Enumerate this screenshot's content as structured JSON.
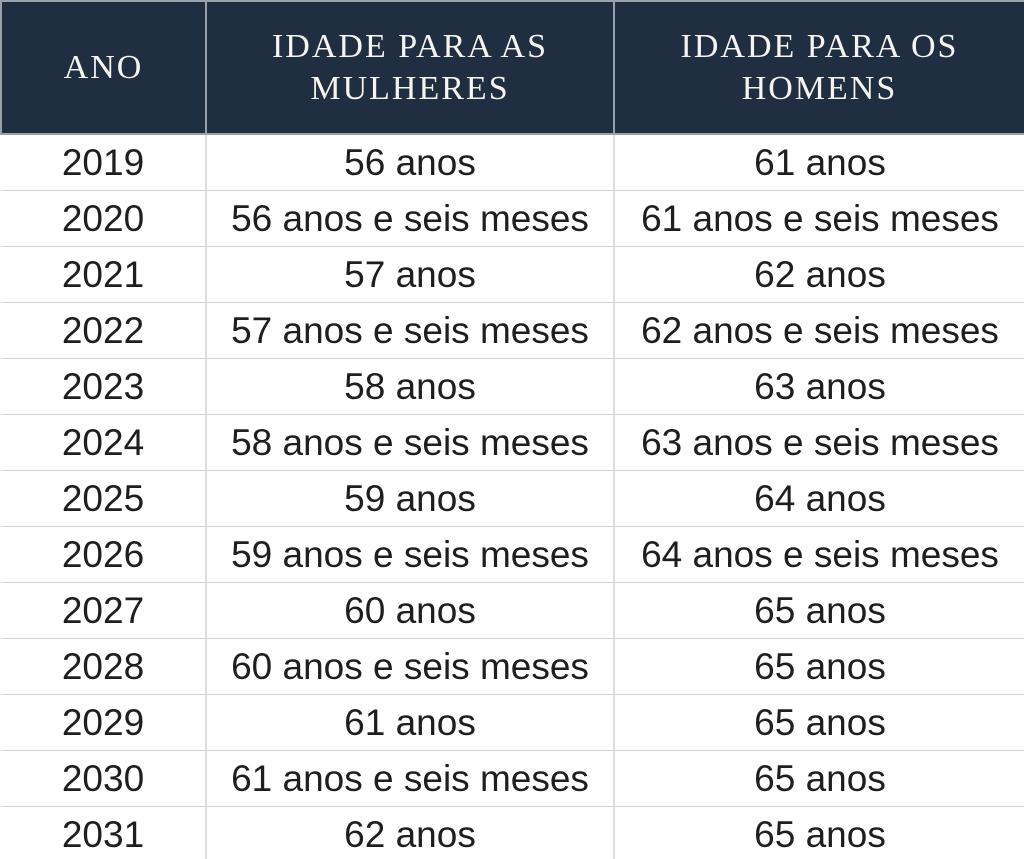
{
  "chart_data": {
    "type": "table",
    "title": "",
    "columns": [
      "ANO",
      "IDADE PARA AS MULHERES",
      "IDADE PARA OS HOMENS"
    ],
    "rows": [
      [
        "2019",
        "56 anos",
        "61 anos"
      ],
      [
        "2020",
        "56 anos e seis meses",
        "61 anos e seis meses"
      ],
      [
        "2021",
        "57 anos",
        "62 anos"
      ],
      [
        "2022",
        "57 anos e seis meses",
        "62 anos e seis meses"
      ],
      [
        "2023",
        "58 anos",
        "63 anos"
      ],
      [
        "2024",
        "58 anos e seis meses",
        "63 anos e seis meses"
      ],
      [
        "2025",
        "59 anos",
        "64 anos"
      ],
      [
        "2026",
        "59 anos e seis meses",
        "64 anos e seis meses"
      ],
      [
        "2027",
        "60 anos",
        "65 anos"
      ],
      [
        "2028",
        "60 anos e seis meses",
        "65 anos"
      ],
      [
        "2029",
        "61 anos",
        "65 anos"
      ],
      [
        "2030",
        "61 anos e seis meses",
        "65 anos"
      ],
      [
        "2031",
        "62 anos",
        "65 anos"
      ]
    ]
  },
  "colors": {
    "header_bg": "#1f2e40",
    "header_text": "#f6f4ee",
    "header_border": "#99a2ac",
    "body_text": "#1e1e1e",
    "row_border": "#d2d2d2",
    "column_border": "#dedede"
  }
}
